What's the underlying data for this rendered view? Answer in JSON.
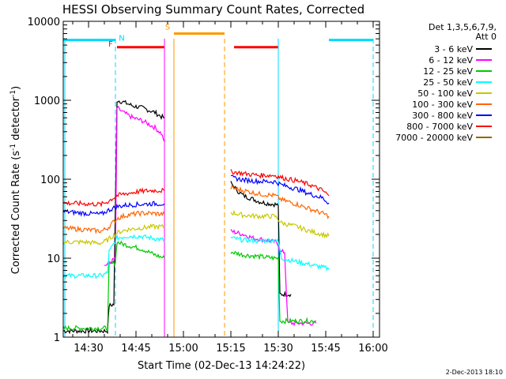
{
  "chart_data": {
    "type": "line",
    "title": "HESSI Observing Summary Count Rates, Corrected",
    "xlabel": "Start Time (02-Dec-13 14:24:22)",
    "ylabel": "Corrected Count Rate (s⁻¹ detector⁻¹)",
    "ylabel_main": "Corrected Count Rate (s",
    "ylabel_sup1": "-1",
    "ylabel_mid": " detector",
    "ylabel_sup2": "-1",
    "ylabel_end": ")",
    "yscale": "log",
    "ylim": [
      1,
      10000
    ],
    "xlim_minutes": [
      -2,
      98
    ],
    "x_ticks": [
      "14:30",
      "14:45",
      "15:00",
      "15:15",
      "15:30",
      "15:45",
      "16:00"
    ],
    "y_ticks": [
      "1",
      "10",
      "100",
      "1000",
      "10000"
    ],
    "legend": {
      "placement": "top-right",
      "header": [
        "Det 1,3,5,6,7,9,",
        "Att 0"
      ],
      "entries": [
        {
          "label": "3 - 6 keV",
          "color": "#000000"
        },
        {
          "label": "6 - 12 keV",
          "color": "#ff00ff"
        },
        {
          "label": "12 - 25 keV",
          "color": "#00c800"
        },
        {
          "label": "25 - 50 keV",
          "color": "#00ffff"
        },
        {
          "label": "50 - 100 keV",
          "color": "#c8c800"
        },
        {
          "label": "100 - 300 keV",
          "color": "#ff6400"
        },
        {
          "label": "300 - 800 keV",
          "color": "#0000ff"
        },
        {
          "label": "800 - 7000 keV",
          "color": "#ff0000"
        },
        {
          "label": "7000 - 20000 keV",
          "color": "#966400"
        }
      ]
    },
    "flags": [
      {
        "label": "N",
        "color": "#00d8ff",
        "segments": [
          [
            -2,
            14.5
          ],
          [
            82,
            96
          ]
        ],
        "y": 5800
      },
      {
        "label": "F",
        "color": "#ff0000",
        "segments": [
          [
            15,
            30
          ]
        ],
        "y": 4700
      },
      {
        "label": "S",
        "color": "#ff9900",
        "segments": [
          [
            33,
            49
          ]
        ],
        "y": 7000
      },
      {
        "label": "",
        "color": "#ff0000",
        "segments": [
          [
            52,
            66
          ]
        ],
        "y": 4700
      }
    ],
    "vlines": [
      {
        "x": -1.5,
        "color": "#00d8ff",
        "dash": false
      },
      {
        "x": 14.5,
        "color": "#00d8ff",
        "dash": true
      },
      {
        "x": 30,
        "color": "#ff00ff",
        "dash": false
      },
      {
        "x": 33,
        "color": "#ff9900",
        "dash": false
      },
      {
        "x": 49,
        "color": "#ff9900",
        "dash": true
      },
      {
        "x": 66,
        "color": "#00d8ff",
        "dash": false
      },
      {
        "x": 96,
        "color": "#00d8ff",
        "dash": true
      }
    ],
    "series": [
      {
        "name": "3 - 6 keV",
        "color": "#000000",
        "segments": [
          [
            [
              -2,
              1.2
            ],
            [
              12,
              1.2
            ],
            [
              12.5,
              2.5
            ],
            [
              14,
              2.6
            ],
            [
              15,
              1000
            ],
            [
              17,
              950
            ],
            [
              20,
              850
            ],
            [
              23,
              800
            ],
            [
              25,
              750
            ],
            [
              27,
              700
            ],
            [
              29,
              620
            ],
            [
              30,
              600
            ]
          ],
          [
            [
              51,
              90
            ],
            [
              53,
              72
            ],
            [
              55,
              62
            ],
            [
              58,
              56
            ],
            [
              60,
              52
            ],
            [
              62,
              50
            ],
            [
              65,
              48
            ],
            [
              66,
              47
            ],
            [
              66.5,
              3.5
            ],
            [
              70,
              3.5
            ]
          ]
        ]
      },
      {
        "name": "6 - 12 keV",
        "color": "#ff00ff",
        "segments": [
          [
            [
              11,
              8
            ],
            [
              13,
              9
            ],
            [
              14.5,
              10
            ],
            [
              15,
              800
            ],
            [
              17,
              700
            ],
            [
              20,
              600
            ],
            [
              23,
              550
            ],
            [
              25,
              500
            ],
            [
              27,
              450
            ],
            [
              29,
              380
            ],
            [
              30,
              300
            ]
          ],
          [
            [
              51,
              22
            ],
            [
              55,
              20
            ],
            [
              58,
              18
            ],
            [
              62,
              17
            ],
            [
              65,
              16
            ],
            [
              66,
              15
            ],
            [
              66.5,
              12
            ],
            [
              68,
              12
            ],
            [
              69,
              1.5
            ],
            [
              78,
              1.5
            ]
          ]
        ]
      },
      {
        "name": "12 - 25 keV",
        "color": "#00c800",
        "segments": [
          [
            [
              -2,
              1.3
            ],
            [
              5,
              1.3
            ],
            [
              12,
              1.3
            ],
            [
              12.5,
              8
            ],
            [
              14.5,
              9
            ],
            [
              15,
              16
            ],
            [
              17,
              15
            ],
            [
              20,
              14
            ],
            [
              23,
              13
            ],
            [
              25,
              12
            ],
            [
              27,
              11
            ],
            [
              30,
              10
            ]
          ],
          [
            [
              51,
              12
            ],
            [
              55,
              11
            ],
            [
              60,
              10.5
            ],
            [
              65,
              10
            ],
            [
              66,
              10
            ],
            [
              66.5,
              1.6
            ],
            [
              78,
              1.6
            ]
          ]
        ]
      },
      {
        "name": "25 - 50 keV",
        "color": "#00ffff",
        "segments": [
          [
            [
              -2,
              6
            ],
            [
              5,
              6
            ],
            [
              10,
              6
            ],
            [
              12,
              6.5
            ],
            [
              12.5,
              12
            ],
            [
              15,
              18
            ],
            [
              18,
              19
            ],
            [
              22,
              19
            ],
            [
              26,
              18
            ],
            [
              30,
              17
            ]
          ],
          [
            [
              51,
              18
            ],
            [
              55,
              17
            ],
            [
              60,
              16.5
            ],
            [
              65,
              17
            ],
            [
              66,
              16
            ],
            [
              67,
              10
            ],
            [
              72,
              9
            ],
            [
              78,
              8
            ],
            [
              81,
              7.5
            ],
            [
              82,
              7.2
            ]
          ]
        ]
      },
      {
        "name": "50 - 100 keV",
        "color": "#c8c800",
        "segments": [
          [
            [
              -2,
              16
            ],
            [
              5,
              16
            ],
            [
              10,
              15.5
            ],
            [
              12,
              17
            ],
            [
              15,
              21
            ],
            [
              18,
              23
            ],
            [
              22,
              24
            ],
            [
              26,
              25
            ],
            [
              30,
              25
            ]
          ],
          [
            [
              51,
              38
            ],
            [
              55,
              35
            ],
            [
              60,
              34
            ],
            [
              65,
              34
            ],
            [
              67,
              28
            ],
            [
              72,
              25
            ],
            [
              76,
              22
            ],
            [
              80,
              20
            ],
            [
              82,
              19
            ]
          ]
        ]
      },
      {
        "name": "100 - 300 keV",
        "color": "#ff6400",
        "segments": [
          [
            [
              -2,
              24
            ],
            [
              5,
              23
            ],
            [
              10,
              22
            ],
            [
              12,
              24
            ],
            [
              15,
              32
            ],
            [
              18,
              35
            ],
            [
              22,
              37
            ],
            [
              26,
              37
            ],
            [
              30,
              36
            ]
          ],
          [
            [
              51,
              78
            ],
            [
              55,
              72
            ],
            [
              60,
              65
            ],
            [
              65,
              62
            ],
            [
              67,
              55
            ],
            [
              72,
              48
            ],
            [
              76,
              42
            ],
            [
              80,
              37
            ],
            [
              82,
              34
            ]
          ]
        ]
      },
      {
        "name": "300 - 800 keV",
        "color": "#0000ff",
        "segments": [
          [
            [
              -2,
              39
            ],
            [
              5,
              37
            ],
            [
              10,
              36
            ],
            [
              12,
              40
            ],
            [
              15,
              45
            ],
            [
              18,
              47
            ],
            [
              22,
              48
            ],
            [
              26,
              49
            ],
            [
              30,
              49
            ]
          ],
          [
            [
              51,
              105
            ],
            [
              55,
              98
            ],
            [
              60,
              94
            ],
            [
              65,
              93
            ],
            [
              67,
              85
            ],
            [
              72,
              75
            ],
            [
              76,
              65
            ],
            [
              80,
              58
            ],
            [
              82,
              50
            ]
          ]
        ]
      },
      {
        "name": "800 - 7000 keV",
        "color": "#ff0000",
        "segments": [
          [
            [
              -2,
              50
            ],
            [
              5,
              49
            ],
            [
              10,
              48
            ],
            [
              12,
              52
            ],
            [
              15,
              62
            ],
            [
              18,
              66
            ],
            [
              22,
              70
            ],
            [
              26,
              72
            ],
            [
              30,
              72
            ]
          ],
          [
            [
              51,
              125
            ],
            [
              55,
              118
            ],
            [
              60,
              112
            ],
            [
              65,
              112
            ],
            [
              67,
              105
            ],
            [
              72,
              95
            ],
            [
              76,
              85
            ],
            [
              80,
              72
            ],
            [
              82,
              62
            ]
          ]
        ]
      }
    ],
    "footer_date": "2-Dec-2013 18:10"
  }
}
